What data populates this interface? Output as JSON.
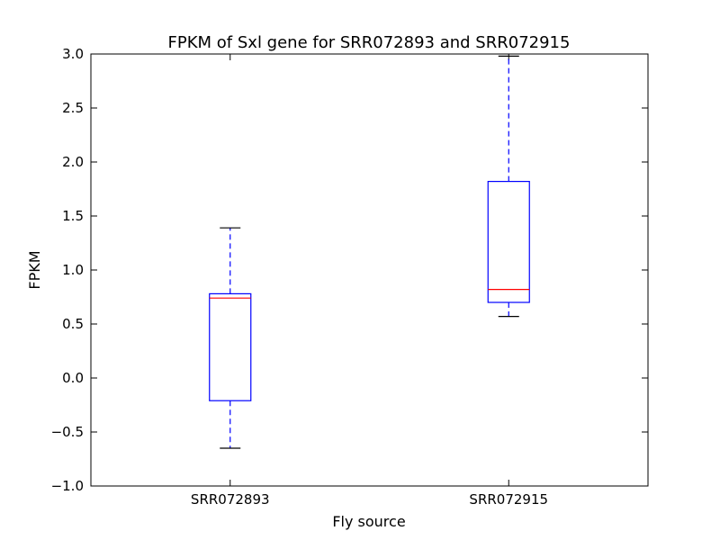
{
  "chart_data": {
    "type": "box",
    "title": "FPKM of Sxl gene for SRR072893 and SRR072915",
    "xlabel": "Fly source",
    "ylabel": "FPKM",
    "ylim": [
      -1.0,
      3.0
    ],
    "yticks": [
      -1.0,
      -0.5,
      0.0,
      0.5,
      1.0,
      1.5,
      2.0,
      2.5,
      3.0
    ],
    "ytick_labels": [
      "−1.0",
      "−0.5",
      "0.0",
      "0.5",
      "1.0",
      "1.5",
      "2.0",
      "2.5",
      "3.0"
    ],
    "categories": [
      "SRR072893",
      "SRR072915"
    ],
    "boxes": [
      {
        "category": "SRR072893",
        "whisker_low": -0.65,
        "q1": -0.21,
        "median": 0.74,
        "q3": 0.78,
        "whisker_high": 1.39
      },
      {
        "category": "SRR072915",
        "whisker_low": 0.57,
        "q1": 0.7,
        "median": 0.82,
        "q3": 1.82,
        "whisker_high": 2.98
      }
    ],
    "grid": false,
    "colors": {
      "box": "#0000ff",
      "median": "#ff0000",
      "cap": "#000000",
      "axis": "#000000"
    }
  }
}
